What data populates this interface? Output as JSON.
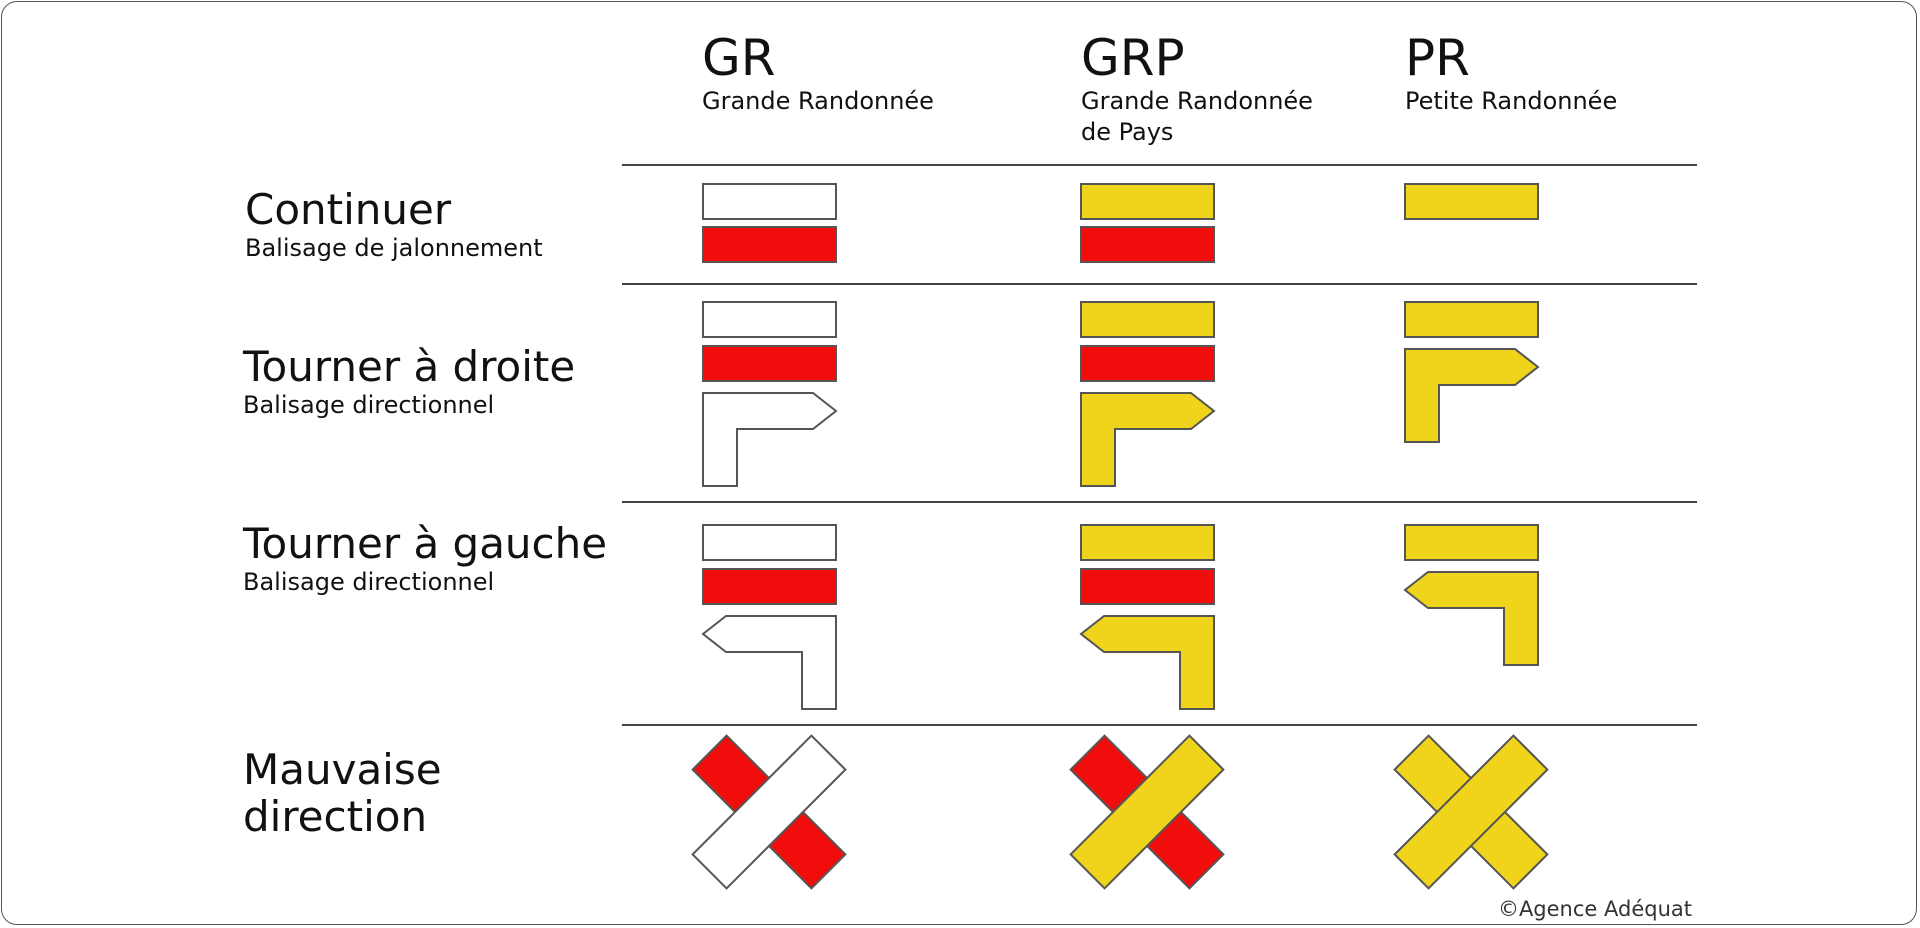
{
  "colors": {
    "white": "#ffffff",
    "red": "#f20d0d",
    "yellow": "#f0d31b",
    "outline": "#555555",
    "rule": "#444444"
  },
  "columns": [
    {
      "code": "GR",
      "name": "Grande Randonnée",
      "top_color": "white",
      "bottom_color": "red"
    },
    {
      "code": "GRP",
      "name": "Grande Randonnée\nde Pays",
      "top_color": "yellow",
      "bottom_color": "red"
    },
    {
      "code": "PR",
      "name": "Petite Randonnée",
      "top_color": "yellow",
      "bottom_color": null
    }
  ],
  "rows": [
    {
      "title": "Continuer",
      "subtitle": "Balisage de jalonnement",
      "marker": "continue"
    },
    {
      "title": "Tourner à droite",
      "subtitle": "Balisage directionnel",
      "marker": "turn-right"
    },
    {
      "title": "Tourner à gauche",
      "subtitle": "Balisage directionnel",
      "marker": "turn-left"
    },
    {
      "title": "Mauvaise\ndirection",
      "subtitle": "",
      "marker": "wrong-way"
    }
  ],
  "credit": "©Agence Adéquat"
}
